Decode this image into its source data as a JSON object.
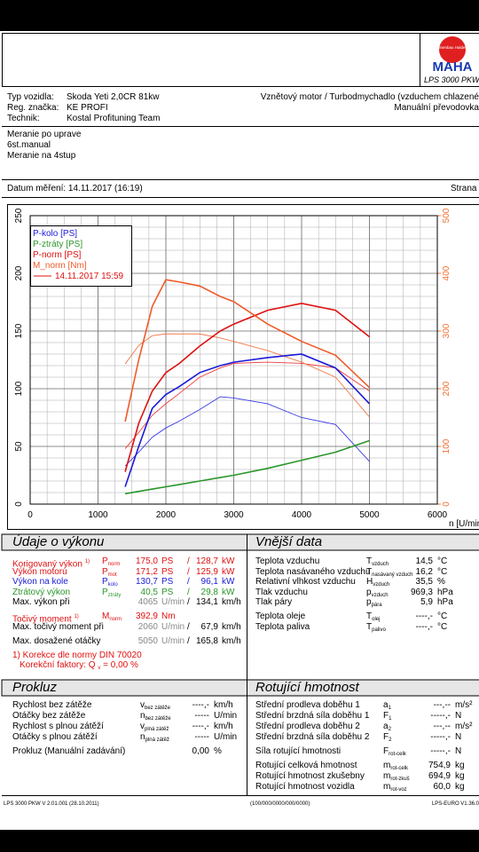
{
  "header": {
    "logo_text": "Maschinenbau Haldenwang",
    "brand": "MAHA",
    "product": "LPS 3000 PKW"
  },
  "vehicle": {
    "rows": [
      [
        "Typ vozidla:",
        "Skoda Yeti 2,0CR 81kw"
      ],
      [
        "Reg. značka:",
        "KE PROFI"
      ],
      [
        "Technik:",
        "Kostal Profituning Team"
      ]
    ],
    "right": [
      "Vznětový motor / Turbodmychadlo (vzduchem chlazené",
      "Manuální převodovka"
    ]
  },
  "notes": [
    "Meranie po uprave",
    "6st.manual",
    "Meranie na 4stup"
  ],
  "date_label": "Datum měření: 14.11.2017 (16:19)",
  "page_label": "Strana",
  "chart_data": {
    "type": "line",
    "x_label": "n [U/min",
    "x": [
      1400,
      1600,
      1800,
      2000,
      2200,
      2500,
      2800,
      3000,
      3500,
      4000,
      4500,
      5000
    ],
    "xlim": [
      0,
      6000
    ],
    "xticks": [
      0,
      1000,
      2000,
      3000,
      4000,
      5000,
      6000
    ],
    "ylim": [
      0,
      250
    ],
    "yticks": [
      0,
      50,
      100,
      150,
      200,
      250
    ],
    "y2lim": [
      0,
      500
    ],
    "y2ticks": [
      0,
      100,
      200,
      300,
      400,
      500
    ],
    "y2color": "#f07030",
    "grid": true,
    "series": [
      {
        "name": "P-kolo [PS]",
        "color": "#1a1ad8",
        "values": [
          15,
          50,
          83,
          95,
          102,
          114,
          120,
          123,
          127,
          130,
          118,
          87
        ]
      },
      {
        "name": "P-ztráty [PS]",
        "color": "#2a962a",
        "values": [
          9,
          11,
          13,
          15,
          17,
          20,
          23,
          25,
          31,
          38,
          45,
          55
        ]
      },
      {
        "name": "P-norm [PS]",
        "color": "#e01010",
        "values": [
          28,
          70,
          98,
          114,
          122,
          137,
          150,
          156,
          168,
          174,
          168,
          145
        ]
      },
      {
        "name": "M_norm [Nm]",
        "color": "#f05a2a",
        "axis": "y2",
        "values": [
          143,
          250,
          343,
          389,
          385,
          378,
          360,
          351,
          312,
          282,
          258,
          202
        ]
      }
    ],
    "comparison": {
      "label": "14.11.2017 15:59",
      "color": "#e01010",
      "series": [
        {
          "color": "#3a3ae8",
          "values": [
            33,
            45,
            58,
            66,
            72,
            82,
            93,
            92,
            87,
            75,
            69,
            37
          ]
        },
        {
          "color": "#f03a3a",
          "values": [
            48,
            62,
            77,
            87,
            96,
            110,
            118,
            122,
            123,
            122,
            118,
            98
          ]
        },
        {
          "color": "#f07a4a",
          "axis": "y2",
          "values": [
            243,
            275,
            292,
            295,
            295,
            295,
            288,
            282,
            266,
            246,
            220,
            151
          ]
        }
      ]
    }
  },
  "performance": {
    "title": "Údaje o výkonu",
    "sep": "/",
    "rows": [
      {
        "label": "Korigovaný výkon",
        "sup": "1)",
        "sym": "P",
        "sub": "norm",
        "v1": "175,0",
        "u1": "PS",
        "v2": "128,7",
        "u2": "kW",
        "color": "#e01010"
      },
      {
        "label": "Výkon motoru",
        "sym": "P",
        "sub": "mot",
        "v1": "171,2",
        "u1": "PS",
        "v2": "125,9",
        "u2": "kW",
        "color": "#e01010"
      },
      {
        "label": "Výkon na kole",
        "sym": "P",
        "sub": "kolo",
        "v1": "130,7",
        "u1": "PS",
        "v2": "96,1",
        "u2": "kW",
        "color": "#1a1ad8"
      },
      {
        "label": "Ztrátový výkon",
        "sym": "P",
        "sub": "ztráty",
        "v1": "40,5",
        "u1": "PS",
        "v2": "29,8",
        "u2": "kW",
        "color": "#2a962a"
      },
      {
        "label": "Max. výkon při",
        "v1": "4065",
        "u1": "U/min",
        "v2": "134,1",
        "u2": "km/h",
        "color": "#000000",
        "gray": true
      },
      {
        "label": "Točivý moment",
        "sup": "1)",
        "sym": "M",
        "sub": "norm",
        "v1": "392,9",
        "u1": "Nm",
        "color": "#e01010"
      },
      {
        "label": "Max. točivý moment při",
        "v1": "2060",
        "u1": "U/min",
        "v2": "67,9",
        "u2": "km/h",
        "color": "#000000",
        "gray": true
      },
      {
        "label": "Max. dosažené otáčky",
        "v1": "5050",
        "u1": "U/min",
        "v2": "165,8",
        "u2": "km/h",
        "color": "#000000",
        "gray": true
      }
    ],
    "footnote": "1) Korekce dle normy DIN 70020",
    "factor": {
      "label": "Korekční faktory: Q",
      "sub": "v",
      "value": "=  0,00 %"
    }
  },
  "external": {
    "title": "Vnější data",
    "rows": [
      {
        "label": "Teplota vzduchu",
        "sym": "T",
        "sub": "vzduch",
        "value": "14,5",
        "unit": "°C"
      },
      {
        "label": "Teplota nasávaného vzduchu",
        "sym": "T",
        "sub": "nasávaný vzduch",
        "value": "16,2",
        "unit": "°C"
      },
      {
        "label": "Relativní vlhkost vzduchu",
        "sym": "H",
        "sub": "vzduch",
        "value": "35,5",
        "unit": "%"
      },
      {
        "label": "Tlak vzduchu",
        "sym": "p",
        "sub": "vzduch",
        "value": "969,3",
        "unit": "hPa"
      },
      {
        "label": "Tlak páry",
        "sym": "p",
        "sub": "pára",
        "value": "5,9",
        "unit": "hPa"
      },
      {
        "label": "Teplota oleje",
        "sym": "T",
        "sub": "olej",
        "value": "----,-",
        "unit": "°C"
      },
      {
        "label": "Teplota paliva",
        "sym": "T",
        "sub": "palivo",
        "value": "----,-",
        "unit": "°C"
      }
    ]
  },
  "slip": {
    "title": "Prokluz",
    "rows": [
      {
        "label": "Rychlost bez zátěže",
        "sym": "v",
        "sub": "bez zátěže",
        "value": "----,-",
        "unit": "km/h"
      },
      {
        "label": "Otáčky bez zátěže",
        "sym": "n",
        "sub": "bez zátěže",
        "value": "-----",
        "unit": "U/min"
      },
      {
        "label": "Rychlost s plnou zátěží",
        "sym": "v",
        "sub": "plná zátěž",
        "value": "----,-",
        "unit": "km/h"
      },
      {
        "label": "Otáčky s plnou zátěží",
        "sym": "n",
        "sub": "plná zátěž",
        "value": "-----",
        "unit": "U/min"
      },
      {
        "label": "Prokluz (Manuální zadávání)",
        "value": "0,00",
        "unit": "%"
      }
    ]
  },
  "rotating": {
    "title": "Rotující hmotnost",
    "rows": [
      {
        "label": "Střední prodleva doběhu 1",
        "sym": "a",
        "sub": "1",
        "value": "---,--",
        "unit": "m/s²"
      },
      {
        "label": "Střední brzdná síla doběhu 1",
        "sym": "F",
        "sub": "1",
        "value": "-----,-",
        "unit": "N"
      },
      {
        "label": "Střední prodleva doběhu 2",
        "sym": "a",
        "sub": "2",
        "value": "---,--",
        "unit": "m/s²"
      },
      {
        "label": "Střední brzdná síla doběhu 2",
        "sym": "F",
        "sub": "2",
        "value": "-----,-",
        "unit": "N"
      },
      {
        "label": "Síla rotující hmotnosti",
        "sym": "F",
        "sub": "rot-celk",
        "value": "-----,-",
        "unit": "N"
      },
      {
        "label": "Rotující celková hmotnost",
        "sym": "m",
        "sub": "rot-celk",
        "value": "754,9",
        "unit": "kg"
      },
      {
        "label": "Rotující hmotnost zkušebny",
        "sym": "m",
        "sub": "rot-zkuš",
        "value": "694,9",
        "unit": "kg"
      },
      {
        "label": "Rotující hmotnost vozidla",
        "sym": "m",
        "sub": "rot-voz",
        "value": "60,0",
        "unit": "kg"
      }
    ]
  },
  "footer": [
    "LPS 3000 PKW V 2.01.001 (28.10.2011)",
    "(100/000/0000/000/0000)",
    "LPS-EURO V1.36.0"
  ]
}
